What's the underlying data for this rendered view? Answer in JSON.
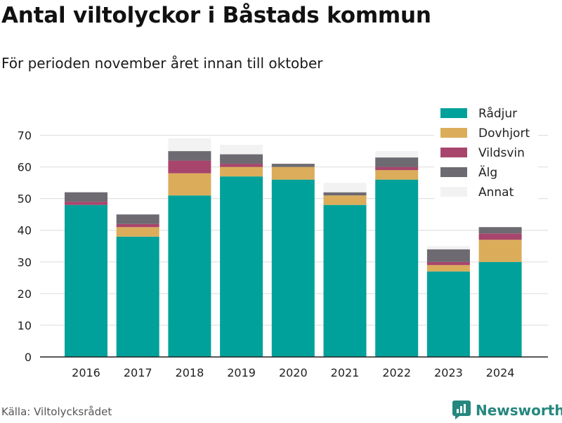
{
  "title": "Antal viltolyckor i Båstads kommun",
  "subtitle": "För perioden november året innan till oktober",
  "source": "Källa: Viltolycksrådet",
  "brand": {
    "name": "Newsworthy",
    "color": "#25877e",
    "icon": "bar-chart-hand-icon"
  },
  "chart_data": {
    "type": "bar",
    "stacked": true,
    "categories": [
      "2016",
      "2017",
      "2018",
      "2019",
      "2020",
      "2021",
      "2022",
      "2023",
      "2024"
    ],
    "series": [
      {
        "name": "Rådjur",
        "color": "#00a19a",
        "values": [
          48,
          38,
          51,
          57,
          56,
          48,
          56,
          27,
          30
        ]
      },
      {
        "name": "Dovhjort",
        "color": "#dbad5a",
        "values": [
          0,
          3,
          7,
          3,
          4,
          3,
          3,
          2,
          7
        ]
      },
      {
        "name": "Vildsvin",
        "color": "#a8456c",
        "values": [
          1,
          1,
          4,
          1,
          0,
          0,
          1,
          1,
          2
        ]
      },
      {
        "name": "Älg",
        "color": "#6d6a71",
        "values": [
          3,
          3,
          3,
          3,
          1,
          1,
          3,
          4,
          2
        ]
      },
      {
        "name": "Annat",
        "color": "#f2f2f2",
        "values": [
          0,
          0,
          4,
          3,
          0,
          3,
          2,
          1,
          0
        ]
      }
    ],
    "y_ticks": [
      "0",
      "10",
      "20",
      "30",
      "40",
      "50",
      "60",
      "70"
    ],
    "ylim": [
      0,
      75
    ],
    "xlabel": "",
    "ylabel": "",
    "grid": true,
    "legend_position": "top-right"
  }
}
